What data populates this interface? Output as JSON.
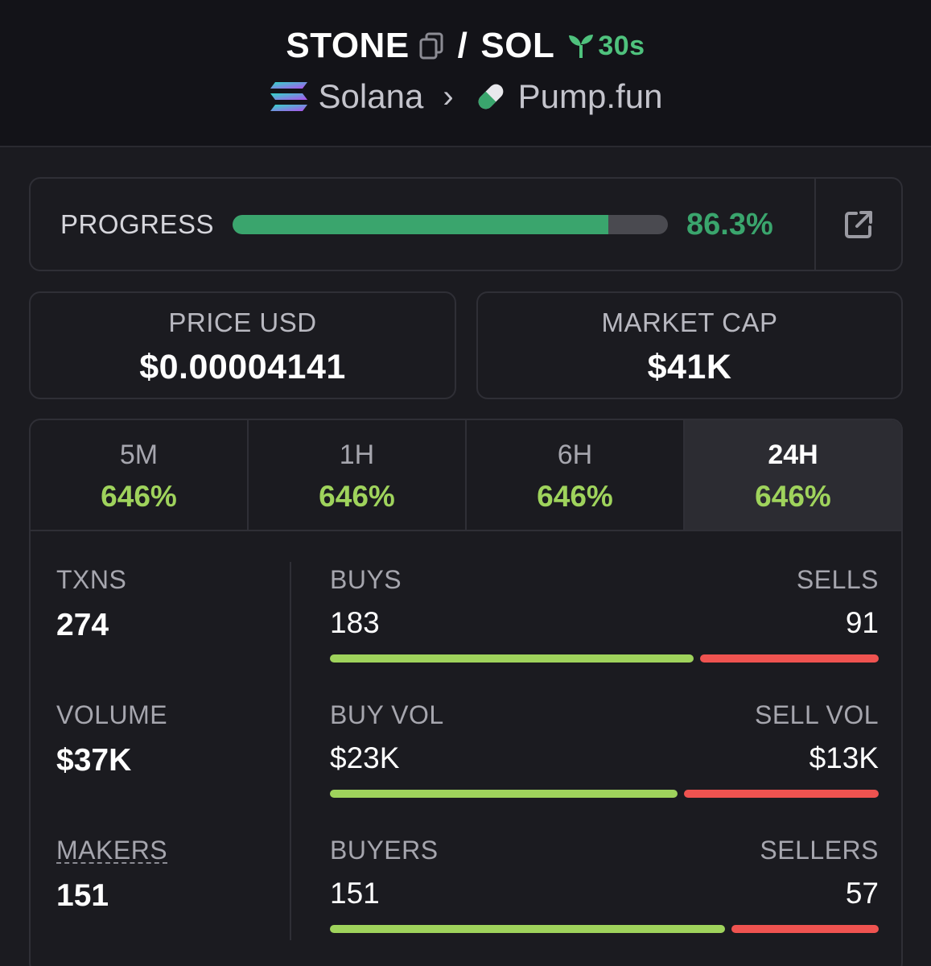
{
  "header": {
    "token": "STONE",
    "slash": "/",
    "quote": "SOL",
    "age": "30s",
    "chain": "Solana",
    "chevron": "›",
    "dex": "Pump.fun"
  },
  "progress": {
    "label": "PROGRESS",
    "value_text": "86.3%",
    "fraction": 0.863
  },
  "price": {
    "label": "PRICE USD",
    "value": "$0.00004141"
  },
  "market_cap": {
    "label": "MARKET CAP",
    "value": "$41K"
  },
  "tabs": [
    {
      "label": "5M",
      "value": "646%"
    },
    {
      "label": "1H",
      "value": "646%"
    },
    {
      "label": "6H",
      "value": "646%"
    },
    {
      "label": "24H",
      "value": "646%",
      "active": true
    }
  ],
  "metrics": {
    "txns": {
      "label": "TXNS",
      "value": "274"
    },
    "volume": {
      "label": "VOLUME",
      "value": "$37K"
    },
    "makers": {
      "label": "MAKERS",
      "value": "151"
    }
  },
  "ratios": {
    "txns": {
      "left_label": "BUYS",
      "right_label": "SELLS",
      "left_value": "183",
      "right_value": "91",
      "buy_fraction": 0.668
    },
    "volume": {
      "left_label": "BUY VOL",
      "right_label": "SELL VOL",
      "left_value": "$23K",
      "right_value": "$13K",
      "buy_fraction": 0.639
    },
    "makers": {
      "left_label": "BUYERS",
      "right_label": "SELLERS",
      "left_value": "151",
      "right_value": "57",
      "buy_fraction": 0.726
    }
  },
  "colors": {
    "green": "#3aa56d",
    "lime": "#9fd35c",
    "red": "#ef5350",
    "background": "#1b1b20"
  }
}
